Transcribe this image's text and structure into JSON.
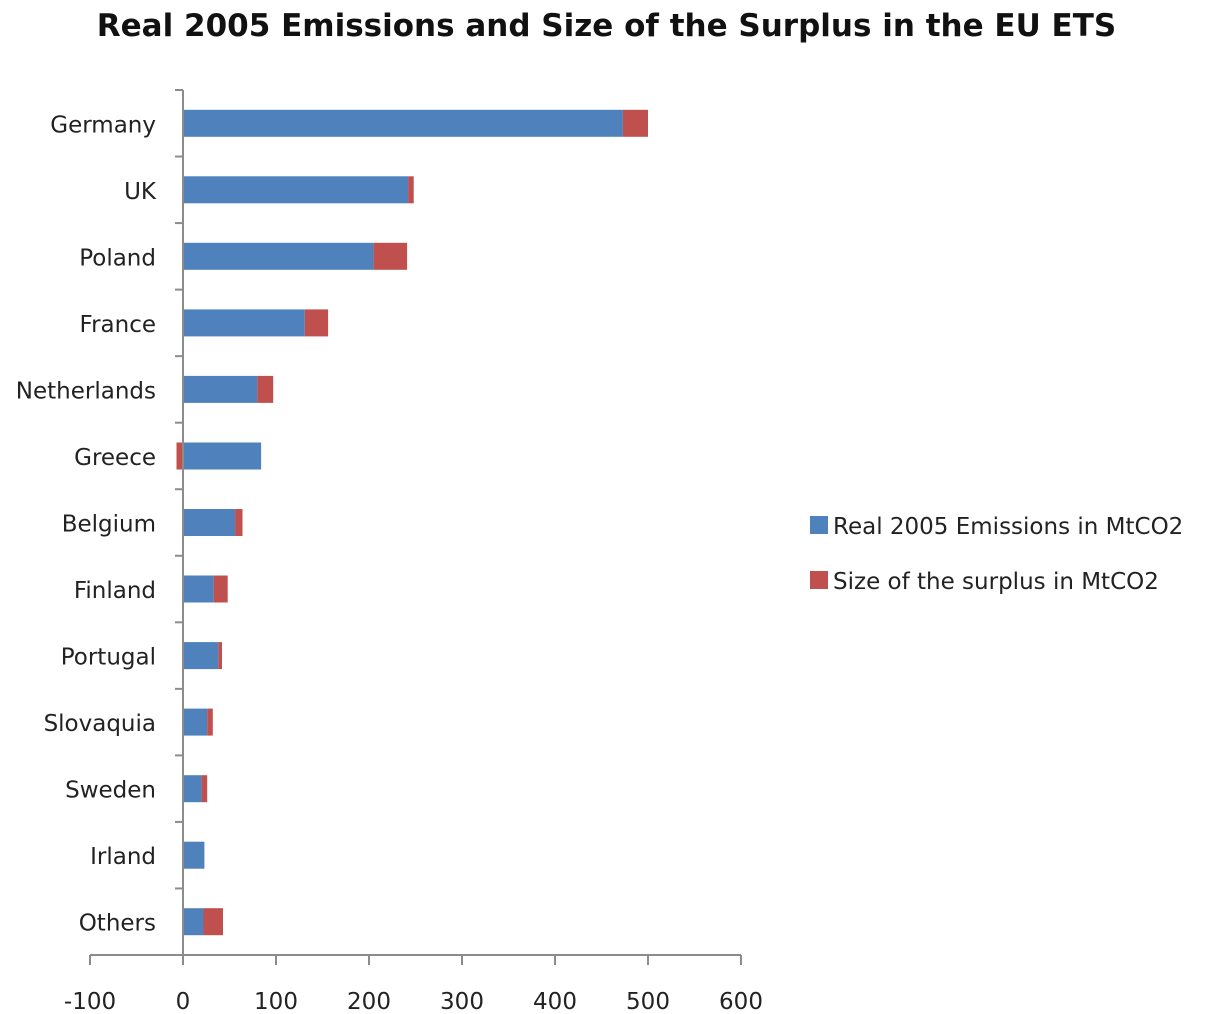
{
  "chart_data": {
    "type": "bar",
    "orientation": "horizontal",
    "stacked": true,
    "title": "Real 2005 Emissions and Size of the Surplus in the EU ETS",
    "xlabel": "",
    "ylabel": "",
    "xlim": [
      -100,
      600
    ],
    "x_ticks": [
      "-100",
      "0",
      "100",
      "200",
      "300",
      "400",
      "500",
      "600"
    ],
    "x_tick_values": [
      -100,
      0,
      100,
      200,
      300,
      400,
      500,
      600
    ],
    "grid": false,
    "legend_position": "right",
    "categories": [
      "Germany",
      "UK",
      "Poland",
      "France",
      "Netherlands",
      "Greece",
      "Belgium",
      "Finland",
      "Portugal",
      "Slovaquia",
      "Sweden",
      "Irland",
      "Others"
    ],
    "series": [
      {
        "name": "Real 2005 Emissions in MtCO2",
        "color": "#4f81bd",
        "values": [
          473,
          242,
          205,
          131,
          80,
          84,
          56,
          33,
          38,
          26,
          20,
          23,
          22
        ]
      },
      {
        "name": "Size of the surplus in MtCO2",
        "color": "#c0504d",
        "values": [
          27,
          6,
          36,
          25,
          17,
          -7,
          8,
          15,
          4,
          6,
          6,
          0,
          21
        ]
      }
    ]
  }
}
